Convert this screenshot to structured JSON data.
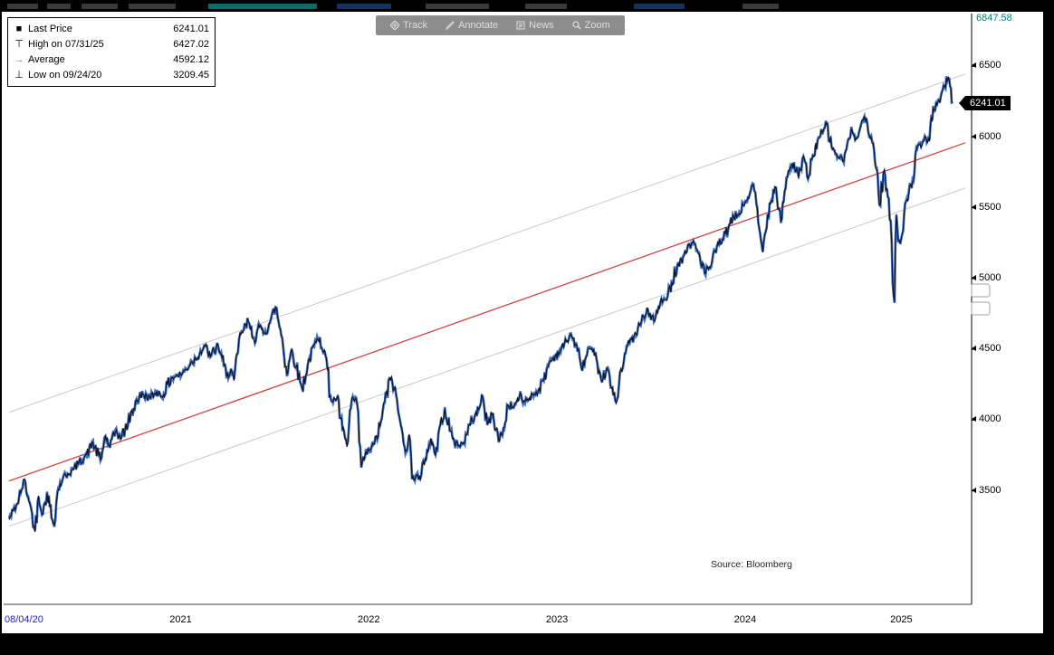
{
  "toolbar": {
    "buttons": [
      {
        "name": "track",
        "label": "Track"
      },
      {
        "name": "annotate",
        "label": "Annotate"
      },
      {
        "name": "news",
        "label": "News"
      },
      {
        "name": "zoom",
        "label": "Zoom"
      }
    ]
  },
  "legend": {
    "rows": [
      {
        "marker": "■",
        "label": "Last Price",
        "value": "6241.01"
      },
      {
        "marker": "⊤",
        "label": "High on 07/31/25",
        "value": "6427.02"
      },
      {
        "marker": "→",
        "label": "Average",
        "value": "4592.12"
      },
      {
        "marker": "⊥",
        "label": "Low on 09/24/20",
        "value": "3209.45"
      }
    ]
  },
  "axis": {
    "max_label": "6847.58",
    "last_price_label": "6241.01",
    "y_ticks": [
      6500,
      6000,
      5500,
      5000,
      4500,
      4000,
      3500
    ],
    "x_start_label": "08/04/20",
    "x_year_labels": [
      {
        "label": "2021",
        "t": 2021.5
      },
      {
        "label": "2022",
        "t": 2022.5
      },
      {
        "label": "2023",
        "t": 2023.5
      },
      {
        "label": "2024",
        "t": 2024.5
      },
      {
        "label": "2025",
        "t": 2025.33
      }
    ]
  },
  "source_label": "Source: Bloomberg",
  "colors": {
    "line_dark": "#0d1522",
    "line_blue": "#2f63c4",
    "trend_mid": "#d04343",
    "trend_band": "#c9c9c9",
    "axis_max": "#008080",
    "last_tag_bg": "#000000",
    "last_tag_text": "#ffffff",
    "start_date": "#2323c8"
  },
  "chart_data": {
    "type": "line",
    "title": "",
    "xlabel": "",
    "ylabel": "",
    "x_range": [
      2020.588,
      2025.67
    ],
    "y_range": [
      2730,
      6847.58
    ],
    "y_axis_ticks": [
      6500,
      6000,
      5500,
      5000,
      4500,
      4000,
      3500
    ],
    "x_axis_labels": [
      "08/04/20",
      "2021",
      "2022",
      "2023",
      "2024",
      "2025"
    ],
    "grid": false,
    "legend_position": "top-left",
    "stats": {
      "last_price": 6241.01,
      "high": {
        "date": "07/31/25",
        "value": 6427.02
      },
      "average": 4592.12,
      "low": {
        "date": "09/24/20",
        "value": 3209.45
      }
    },
    "trend_channel": {
      "mid_start": 3570,
      "mid_end": 5960,
      "upper_offset": 485,
      "lower_offset": -320,
      "mid_color": "#d04343",
      "band_color": "#c9c9c9"
    },
    "series": [
      {
        "name": "Last Price",
        "points": [
          [
            2020.588,
            3295
          ],
          [
            2020.61,
            3360
          ],
          [
            2020.632,
            3411
          ],
          [
            2020.655,
            3508
          ],
          [
            2020.67,
            3580
          ],
          [
            2020.693,
            3427
          ],
          [
            2020.71,
            3340
          ],
          [
            2020.726,
            3209.45
          ],
          [
            2020.745,
            3465
          ],
          [
            2020.768,
            3335
          ],
          [
            2020.79,
            3483
          ],
          [
            2020.823,
            3270
          ],
          [
            2020.85,
            3510
          ],
          [
            2020.874,
            3585
          ],
          [
            2020.9,
            3622
          ],
          [
            2020.93,
            3647
          ],
          [
            2020.96,
            3703
          ],
          [
            2021.0,
            3756
          ],
          [
            2021.034,
            3841
          ],
          [
            2021.074,
            3714
          ],
          [
            2021.1,
            3886
          ],
          [
            2021.124,
            3811
          ],
          [
            2021.158,
            3930
          ],
          [
            2021.18,
            3870
          ],
          [
            2021.22,
            3973
          ],
          [
            2021.26,
            4128
          ],
          [
            2021.3,
            4181
          ],
          [
            2021.34,
            4155
          ],
          [
            2021.374,
            4204
          ],
          [
            2021.4,
            4168
          ],
          [
            2021.45,
            4298
          ],
          [
            2021.5,
            4320
          ],
          [
            2021.53,
            4360
          ],
          [
            2021.56,
            4411
          ],
          [
            2021.6,
            4470
          ],
          [
            2021.63,
            4523
          ],
          [
            2021.658,
            4450
          ],
          [
            2021.7,
            4528
          ],
          [
            2021.72,
            4443
          ],
          [
            2021.744,
            4308
          ],
          [
            2021.768,
            4363
          ],
          [
            2021.784,
            4278
          ],
          [
            2021.82,
            4605
          ],
          [
            2021.86,
            4697
          ],
          [
            2021.89,
            4567
          ],
          [
            2021.92,
            4655
          ],
          [
            2021.95,
            4620
          ],
          [
            2021.98,
            4712
          ],
          [
            2022.005,
            4797
          ],
          [
            2022.04,
            4577
          ],
          [
            2022.065,
            4326
          ],
          [
            2022.09,
            4500
          ],
          [
            2022.114,
            4374
          ],
          [
            2022.145,
            4225
          ],
          [
            2022.175,
            4385
          ],
          [
            2022.21,
            4530
          ],
          [
            2022.24,
            4583
          ],
          [
            2022.27,
            4460
          ],
          [
            2022.3,
            4132
          ],
          [
            2022.33,
            4155
          ],
          [
            2022.36,
            3935
          ],
          [
            2022.384,
            3810
          ],
          [
            2022.41,
            4158
          ],
          [
            2022.438,
            4110
          ],
          [
            2022.46,
            3667
          ],
          [
            2022.48,
            3750
          ],
          [
            2022.5,
            3785
          ],
          [
            2022.53,
            3830
          ],
          [
            2022.56,
            3960
          ],
          [
            2022.584,
            4130
          ],
          [
            2022.62,
            4305
          ],
          [
            2022.65,
            4140
          ],
          [
            2022.67,
            3955
          ],
          [
            2022.7,
            3790
          ],
          [
            2022.714,
            3900
          ],
          [
            2022.73,
            3586
          ],
          [
            2022.754,
            3612
          ],
          [
            2022.774,
            3577
          ],
          [
            2022.8,
            3730
          ],
          [
            2022.83,
            3872
          ],
          [
            2022.854,
            3750
          ],
          [
            2022.88,
            3965
          ],
          [
            2022.904,
            4080
          ],
          [
            2022.93,
            3930
          ],
          [
            2022.954,
            3845
          ],
          [
            2022.98,
            3822
          ],
          [
            2023.0,
            3840
          ],
          [
            2023.02,
            3895
          ],
          [
            2023.05,
            3999
          ],
          [
            2023.084,
            4077
          ],
          [
            2023.1,
            4179
          ],
          [
            2023.13,
            3970
          ],
          [
            2023.16,
            4045
          ],
          [
            2023.19,
            3856
          ],
          [
            2023.22,
            3948
          ],
          [
            2023.24,
            4109
          ],
          [
            2023.27,
            4090
          ],
          [
            2023.3,
            4169
          ],
          [
            2023.33,
            4130
          ],
          [
            2023.37,
            4180
          ],
          [
            2023.4,
            4205
          ],
          [
            2023.43,
            4282
          ],
          [
            2023.46,
            4410
          ],
          [
            2023.49,
            4450
          ],
          [
            2023.52,
            4495
          ],
          [
            2023.55,
            4555
          ],
          [
            2023.574,
            4607
          ],
          [
            2023.6,
            4537
          ],
          [
            2023.63,
            4370
          ],
          [
            2023.654,
            4440
          ],
          [
            2023.67,
            4508
          ],
          [
            2023.7,
            4460
          ],
          [
            2023.72,
            4330
          ],
          [
            2023.744,
            4288
          ],
          [
            2023.77,
            4358
          ],
          [
            2023.79,
            4224
          ],
          [
            2023.814,
            4117
          ],
          [
            2023.84,
            4365
          ],
          [
            2023.87,
            4514
          ],
          [
            2023.894,
            4568
          ],
          [
            2023.92,
            4605
          ],
          [
            2023.95,
            4707
          ],
          [
            2023.985,
            4770
          ],
          [
            2024.02,
            4697
          ],
          [
            2024.05,
            4840
          ],
          [
            2024.084,
            4846
          ],
          [
            2024.11,
            4975
          ],
          [
            2024.14,
            5096
          ],
          [
            2024.17,
            5150
          ],
          [
            2024.2,
            5234
          ],
          [
            2024.23,
            5254
          ],
          [
            2024.26,
            5150
          ],
          [
            2024.29,
            5036
          ],
          [
            2024.32,
            5100
          ],
          [
            2024.35,
            5222
          ],
          [
            2024.38,
            5278
          ],
          [
            2024.41,
            5354
          ],
          [
            2024.44,
            5431
          ],
          [
            2024.47,
            5460
          ],
          [
            2024.5,
            5537
          ],
          [
            2024.53,
            5615
          ],
          [
            2024.544,
            5667
          ],
          [
            2024.57,
            5399
          ],
          [
            2024.594,
            5186
          ],
          [
            2024.62,
            5455
          ],
          [
            2024.65,
            5625
          ],
          [
            2024.664,
            5648
          ],
          [
            2024.69,
            5408
          ],
          [
            2024.71,
            5626
          ],
          [
            2024.73,
            5762
          ],
          [
            2024.76,
            5815
          ],
          [
            2024.784,
            5705
          ],
          [
            2024.81,
            5864
          ],
          [
            2024.834,
            5705
          ],
          [
            2024.86,
            5870
          ],
          [
            2024.89,
            5987
          ],
          [
            2024.91,
            6032
          ],
          [
            2024.934,
            6090
          ],
          [
            2024.96,
            5930
          ],
          [
            2024.984,
            5882
          ],
          [
            2025.02,
            5827
          ],
          [
            2025.044,
            5950
          ],
          [
            2025.07,
            6041
          ],
          [
            2025.09,
            5994
          ],
          [
            2025.11,
            6066
          ],
          [
            2025.134,
            6147
          ],
          [
            2025.16,
            6013
          ],
          [
            2025.18,
            5955
          ],
          [
            2025.2,
            5770
          ],
          [
            2025.214,
            5521
          ],
          [
            2025.24,
            5767
          ],
          [
            2025.258,
            5581
          ],
          [
            2025.274,
            5396
          ],
          [
            2025.284,
            4983
          ],
          [
            2025.294,
            4835
          ],
          [
            2025.304,
            5456
          ],
          [
            2025.314,
            5268
          ],
          [
            2025.33,
            5282
          ],
          [
            2025.35,
            5525
          ],
          [
            2025.37,
            5604
          ],
          [
            2025.39,
            5686
          ],
          [
            2025.41,
            5912
          ],
          [
            2025.44,
            5940
          ],
          [
            2025.46,
            6000
          ],
          [
            2025.48,
            5970
          ],
          [
            2025.5,
            6204
          ],
          [
            2025.52,
            6227
          ],
          [
            2025.54,
            6280
          ],
          [
            2025.56,
            6363
          ],
          [
            2025.58,
            6427.02
          ],
          [
            2025.594,
            6339
          ],
          [
            2025.602,
            6241.01
          ]
        ]
      }
    ]
  }
}
